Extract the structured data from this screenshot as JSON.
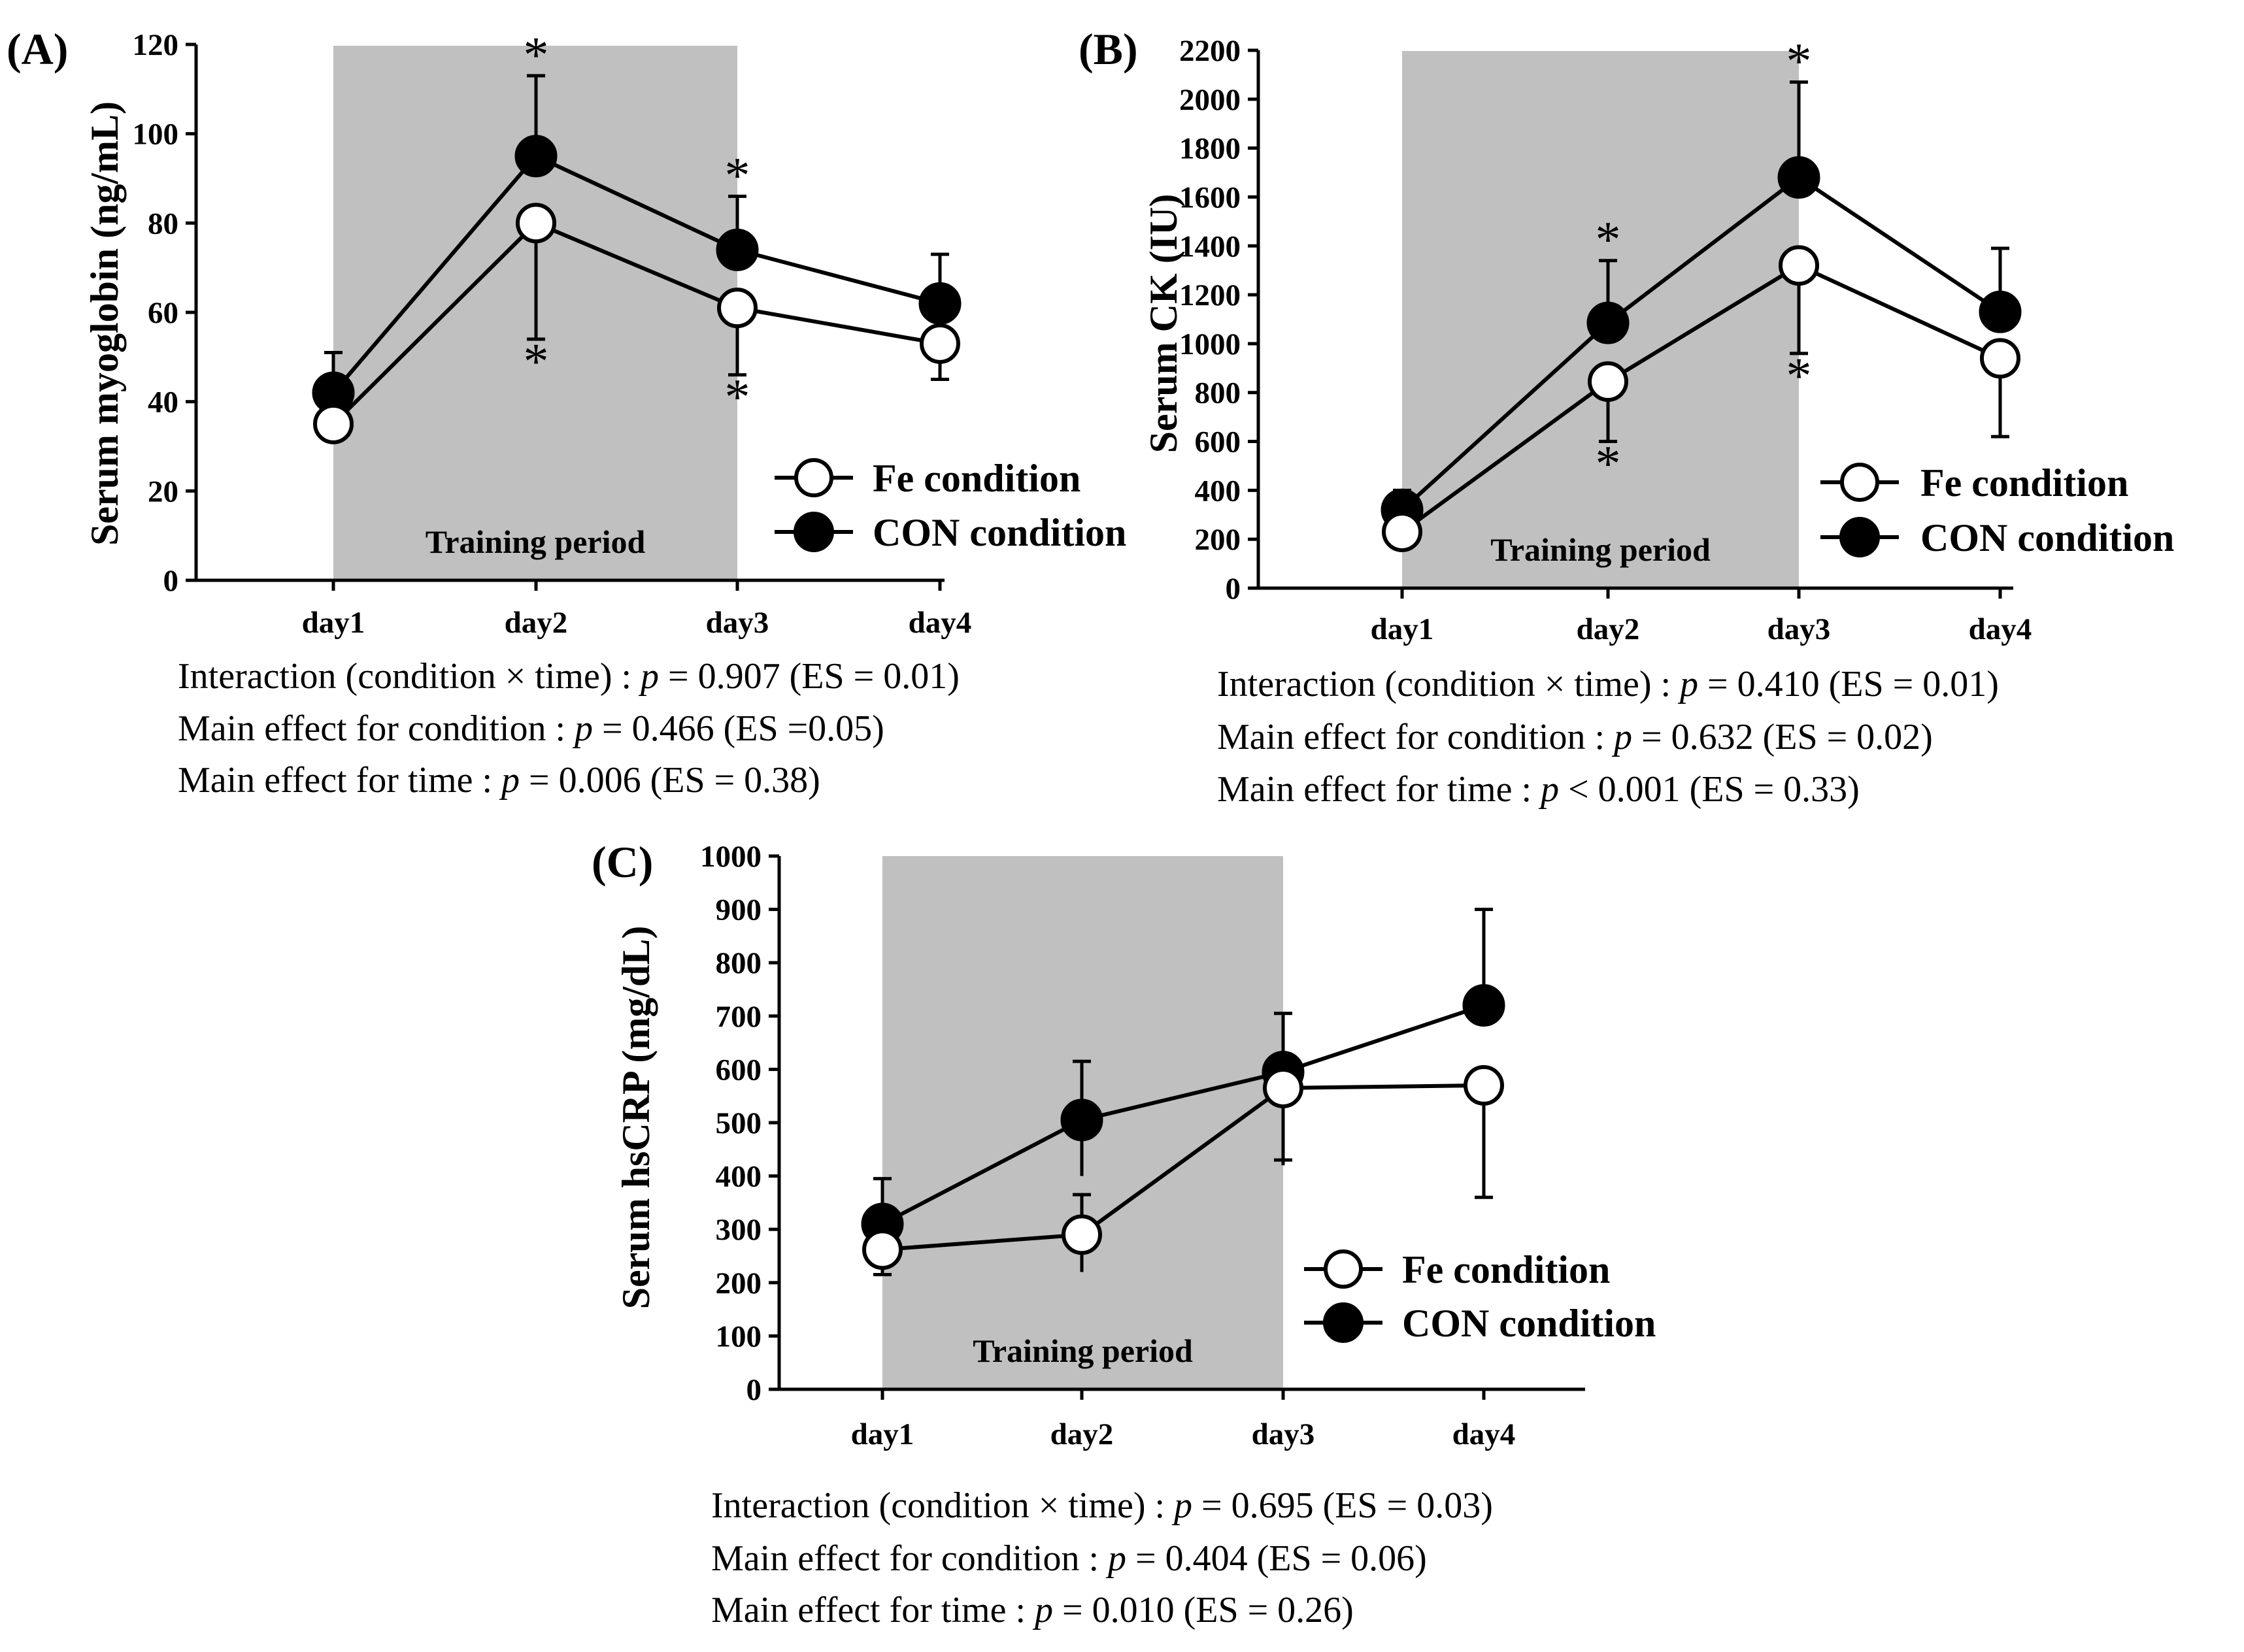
{
  "chart_data": [
    {
      "type": "line",
      "panel_label": "(A)",
      "ylabel": "Serum myoglobin (ng/mL)",
      "ylim": [
        0,
        120
      ],
      "yticks": [
        0,
        20,
        40,
        60,
        80,
        100,
        120
      ],
      "ytick_labels": [
        "0",
        "20",
        "40",
        "60",
        "80",
        "100",
        "120"
      ],
      "categories": [
        "day1",
        "day2",
        "day3",
        "day4"
      ],
      "shaded_region": {
        "label": "Training period",
        "from_category": "day1",
        "to_category": "day3",
        "color": "#c0c0c0"
      },
      "series": [
        {
          "name": "Fe condition",
          "marker": "open-circle",
          "values": [
            35,
            80,
            61,
            53
          ],
          "err_lower": [
            35,
            54,
            46,
            45
          ],
          "err_upper": [
            35,
            80,
            61,
            53
          ],
          "star_below": [
            false,
            true,
            true,
            false
          ]
        },
        {
          "name": "CON condition",
          "marker": "filled-circle",
          "values": [
            42,
            95,
            74,
            62
          ],
          "err_lower": [
            42,
            95,
            74,
            62
          ],
          "err_upper": [
            51,
            113,
            86,
            73
          ],
          "star_above": [
            false,
            true,
            true,
            false
          ]
        }
      ],
      "star_symbol": "*",
      "stats": {
        "line1": {
          "pre": "Interaction (condition × time) : ",
          "p": "p",
          "post": " = 0.907 (ES = 0.01)"
        },
        "line2": {
          "pre": "Main effect for condition : ",
          "p": "p",
          "post": " = 0.466 (ES =0.05)"
        },
        "line3": {
          "pre": "Main effect for time : ",
          "p": "p",
          "post": " =  0.006 (ES = 0.38)"
        }
      }
    },
    {
      "type": "line",
      "panel_label": "(B)",
      "ylabel": "Serum CK (IU)",
      "ylim": [
        0,
        2200
      ],
      "yticks": [
        0,
        200,
        400,
        600,
        800,
        1000,
        1200,
        1400,
        1600,
        1800,
        2000,
        2200
      ],
      "ytick_labels": [
        "0",
        "200",
        "400",
        "600",
        "800",
        "1000",
        "1200",
        "1400",
        "1600",
        "1800",
        "2000",
        "2200"
      ],
      "categories": [
        "day1",
        "day2",
        "day3",
        "day4"
      ],
      "shaded_region": {
        "label": "Training period",
        "from_category": "day1",
        "to_category": "day3",
        "color": "#c0c0c0"
      },
      "series": [
        {
          "name": "Fe condition",
          "marker": "open-circle",
          "values": [
            230,
            845,
            1320,
            940
          ],
          "err_lower": [
            230,
            600,
            960,
            620
          ],
          "err_upper": [
            230,
            845,
            1320,
            940
          ],
          "star_below": [
            false,
            true,
            true,
            false
          ]
        },
        {
          "name": "CON condition",
          "marker": "filled-circle",
          "values": [
            320,
            1085,
            1680,
            1130
          ],
          "err_lower": [
            320,
            1085,
            1680,
            1130
          ],
          "err_upper": [
            400,
            1340,
            2070,
            1390
          ],
          "star_above": [
            false,
            true,
            true,
            false
          ]
        }
      ],
      "star_symbol": "*",
      "stats": {
        "line1": {
          "pre": "Interaction (condition × time) :  ",
          "p": "p",
          "post": " = 0.410 (ES = 0.01)"
        },
        "line2": {
          "pre": "Main effect for condition : ",
          "p": "p",
          "post": " = 0.632 (ES = 0.02)"
        },
        "line3": {
          "pre": "Main effect for time : ",
          "p": "p",
          "post": " < 0.001 (ES = 0.33)"
        }
      }
    },
    {
      "type": "line",
      "panel_label": "(C)",
      "ylabel": "Serum hsCRP (mg/dL)",
      "ylim": [
        0,
        1000
      ],
      "yticks": [
        0,
        100,
        200,
        300,
        400,
        500,
        600,
        700,
        800,
        900,
        1000
      ],
      "ytick_labels": [
        "0",
        "100",
        "200",
        "300",
        "400",
        "500",
        "600",
        "700",
        "800",
        "900",
        "1000"
      ],
      "categories": [
        "day1",
        "day2",
        "day3",
        "day4"
      ],
      "shaded_region": {
        "label": "Training period",
        "from_category": "day1",
        "to_category": "day3",
        "color": "#c0c0c0"
      },
      "series": [
        {
          "name": "Fe condition",
          "marker": "open-circle",
          "values": [
            262,
            290,
            565,
            570
          ],
          "err_lower": [
            215,
            220,
            430,
            360
          ],
          "err_upper": [
            262,
            365,
            565,
            570
          ],
          "star_below": [
            false,
            false,
            false,
            false
          ]
        },
        {
          "name": "CON condition",
          "marker": "filled-circle",
          "values": [
            310,
            505,
            595,
            720
          ],
          "err_lower": [
            310,
            400,
            420,
            720
          ],
          "err_upper": [
            395,
            615,
            705,
            900
          ],
          "star_above": [
            false,
            false,
            false,
            false
          ]
        }
      ],
      "star_symbol": "*",
      "stats": {
        "line1": {
          "pre": "Interaction (condition × time) :  ",
          "p": "p",
          "post": " = 0.695 (ES = 0.03)"
        },
        "line2": {
          "pre": "Main effect for condition :  ",
          "p": "p",
          "post": " = 0.404 (ES = 0.06)"
        },
        "line3": {
          "pre": "Main effect for time : ",
          "p": "p",
          "post": " = 0.010 (ES = 0.26)"
        }
      }
    }
  ]
}
